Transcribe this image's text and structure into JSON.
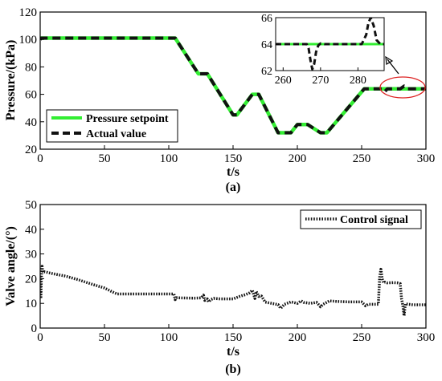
{
  "colors": {
    "setpoint": "#33ee33",
    "actual": "#111111",
    "control": "#111111",
    "marker": "#dd2222"
  },
  "chart_data": [
    {
      "type": "line",
      "panel_label": "(a)",
      "xlabel": "t/s",
      "ylabel": "Pressure/(kPa)",
      "xlim": [
        0,
        300
      ],
      "ylim": [
        20,
        120
      ],
      "xticks": [
        "0",
        "50",
        "100",
        "150",
        "200",
        "250",
        "300"
      ],
      "yticks": [
        "20",
        "40",
        "60",
        "80",
        "100",
        "120"
      ],
      "legend_position": "bottom-left",
      "series": [
        {
          "name": "Pressure setpoint",
          "style": "solid",
          "x": [
            0,
            105,
            123,
            130,
            150,
            153,
            165,
            170,
            185,
            195,
            200,
            208,
            218,
            223,
            252,
            300
          ],
          "y": [
            101,
            101,
            75,
            75,
            45,
            45,
            60,
            60,
            32,
            32,
            38,
            38,
            32,
            32,
            64,
            64
          ]
        },
        {
          "name": "Actual value",
          "style": "dashed",
          "x": [
            0,
            1,
            3,
            105,
            123,
            130,
            150,
            153,
            165,
            170,
            185,
            195,
            200,
            208,
            218,
            223,
            252,
            266,
            268,
            270,
            280,
            283,
            286,
            300
          ],
          "y": [
            100,
            101,
            101,
            101,
            75,
            75,
            45,
            45,
            60,
            60,
            32,
            32,
            38,
            38,
            32,
            32,
            64,
            64,
            62,
            64,
            64,
            66,
            64,
            64
          ]
        }
      ],
      "inset": {
        "xlim": [
          258,
          287
        ],
        "ylim": [
          62,
          66
        ],
        "xticks": [
          "260",
          "270",
          "280"
        ],
        "yticks": [
          "62",
          "64",
          "66"
        ],
        "setpoint": {
          "x": [
            258,
            287
          ],
          "y": [
            64,
            64
          ]
        },
        "actual": {
          "x": [
            258,
            266.3,
            266.8,
            267.3,
            267.8,
            268.3,
            268.8,
            269.4,
            270,
            271,
            281,
            282.2,
            282.8,
            283.4,
            284.2,
            285,
            286,
            287
          ],
          "y": [
            64,
            64,
            63.7,
            62.8,
            62.1,
            62.5,
            63.4,
            63.9,
            64.05,
            64,
            64,
            64.7,
            65.6,
            66,
            65.4,
            64.3,
            64,
            64
          ]
        }
      }
    },
    {
      "type": "line",
      "panel_label": "(b)",
      "xlabel": "t/s",
      "ylabel": "Valve angle/(°)",
      "xlim": [
        0,
        300
      ],
      "ylim": [
        0,
        50
      ],
      "xticks": [
        "0",
        "50",
        "100",
        "150",
        "200",
        "250",
        "300"
      ],
      "yticks": [
        "0",
        "10",
        "20",
        "30",
        "40",
        "50"
      ],
      "legend_position": "top-right",
      "series": [
        {
          "name": "Control signal",
          "style": "dotted",
          "x": [
            0,
            0.5,
            1,
            1.5,
            2,
            2.5,
            3,
            5,
            10,
            20,
            30,
            40,
            50,
            58,
            60,
            70,
            80,
            90,
            100,
            104,
            105,
            106,
            110,
            120,
            125,
            127,
            128,
            130,
            131,
            133,
            135,
            140,
            150,
            155,
            160,
            163,
            165,
            167,
            168,
            170,
            172,
            175,
            180,
            185,
            187,
            190,
            195,
            200,
            203,
            205,
            210,
            215,
            218,
            220,
            225,
            230,
            240,
            250,
            253,
            255,
            260,
            263,
            264,
            265,
            266,
            267,
            268,
            270,
            275,
            278,
            280,
            281,
            282,
            283,
            284,
            290,
            300
          ],
          "y": [
            21,
            12,
            21,
            25,
            23,
            22.5,
            22.8,
            22.6,
            22,
            21,
            19.5,
            17.8,
            16.2,
            14.2,
            13.8,
            13.8,
            13.8,
            13.8,
            13.8,
            13.8,
            11.5,
            12.3,
            12.2,
            12.1,
            12.2,
            13.3,
            11.2,
            11.8,
            10.6,
            11.6,
            12,
            11.8,
            11.8,
            12.8,
            13.6,
            14.3,
            15.3,
            12,
            14.8,
            12.8,
            13,
            10.5,
            10,
            9.5,
            8,
            9.6,
            10.6,
            10,
            11,
            10.4,
            10,
            10.4,
            8.6,
            9.6,
            11,
            10.8,
            10.6,
            10.6,
            9,
            9.6,
            9.6,
            9.6,
            20.5,
            23.8,
            20,
            18.3,
            18.6,
            18.3,
            18.4,
            18.3,
            18,
            12,
            9.3,
            5,
            9.8,
            9.4,
            9.4
          ]
        }
      ]
    }
  ]
}
